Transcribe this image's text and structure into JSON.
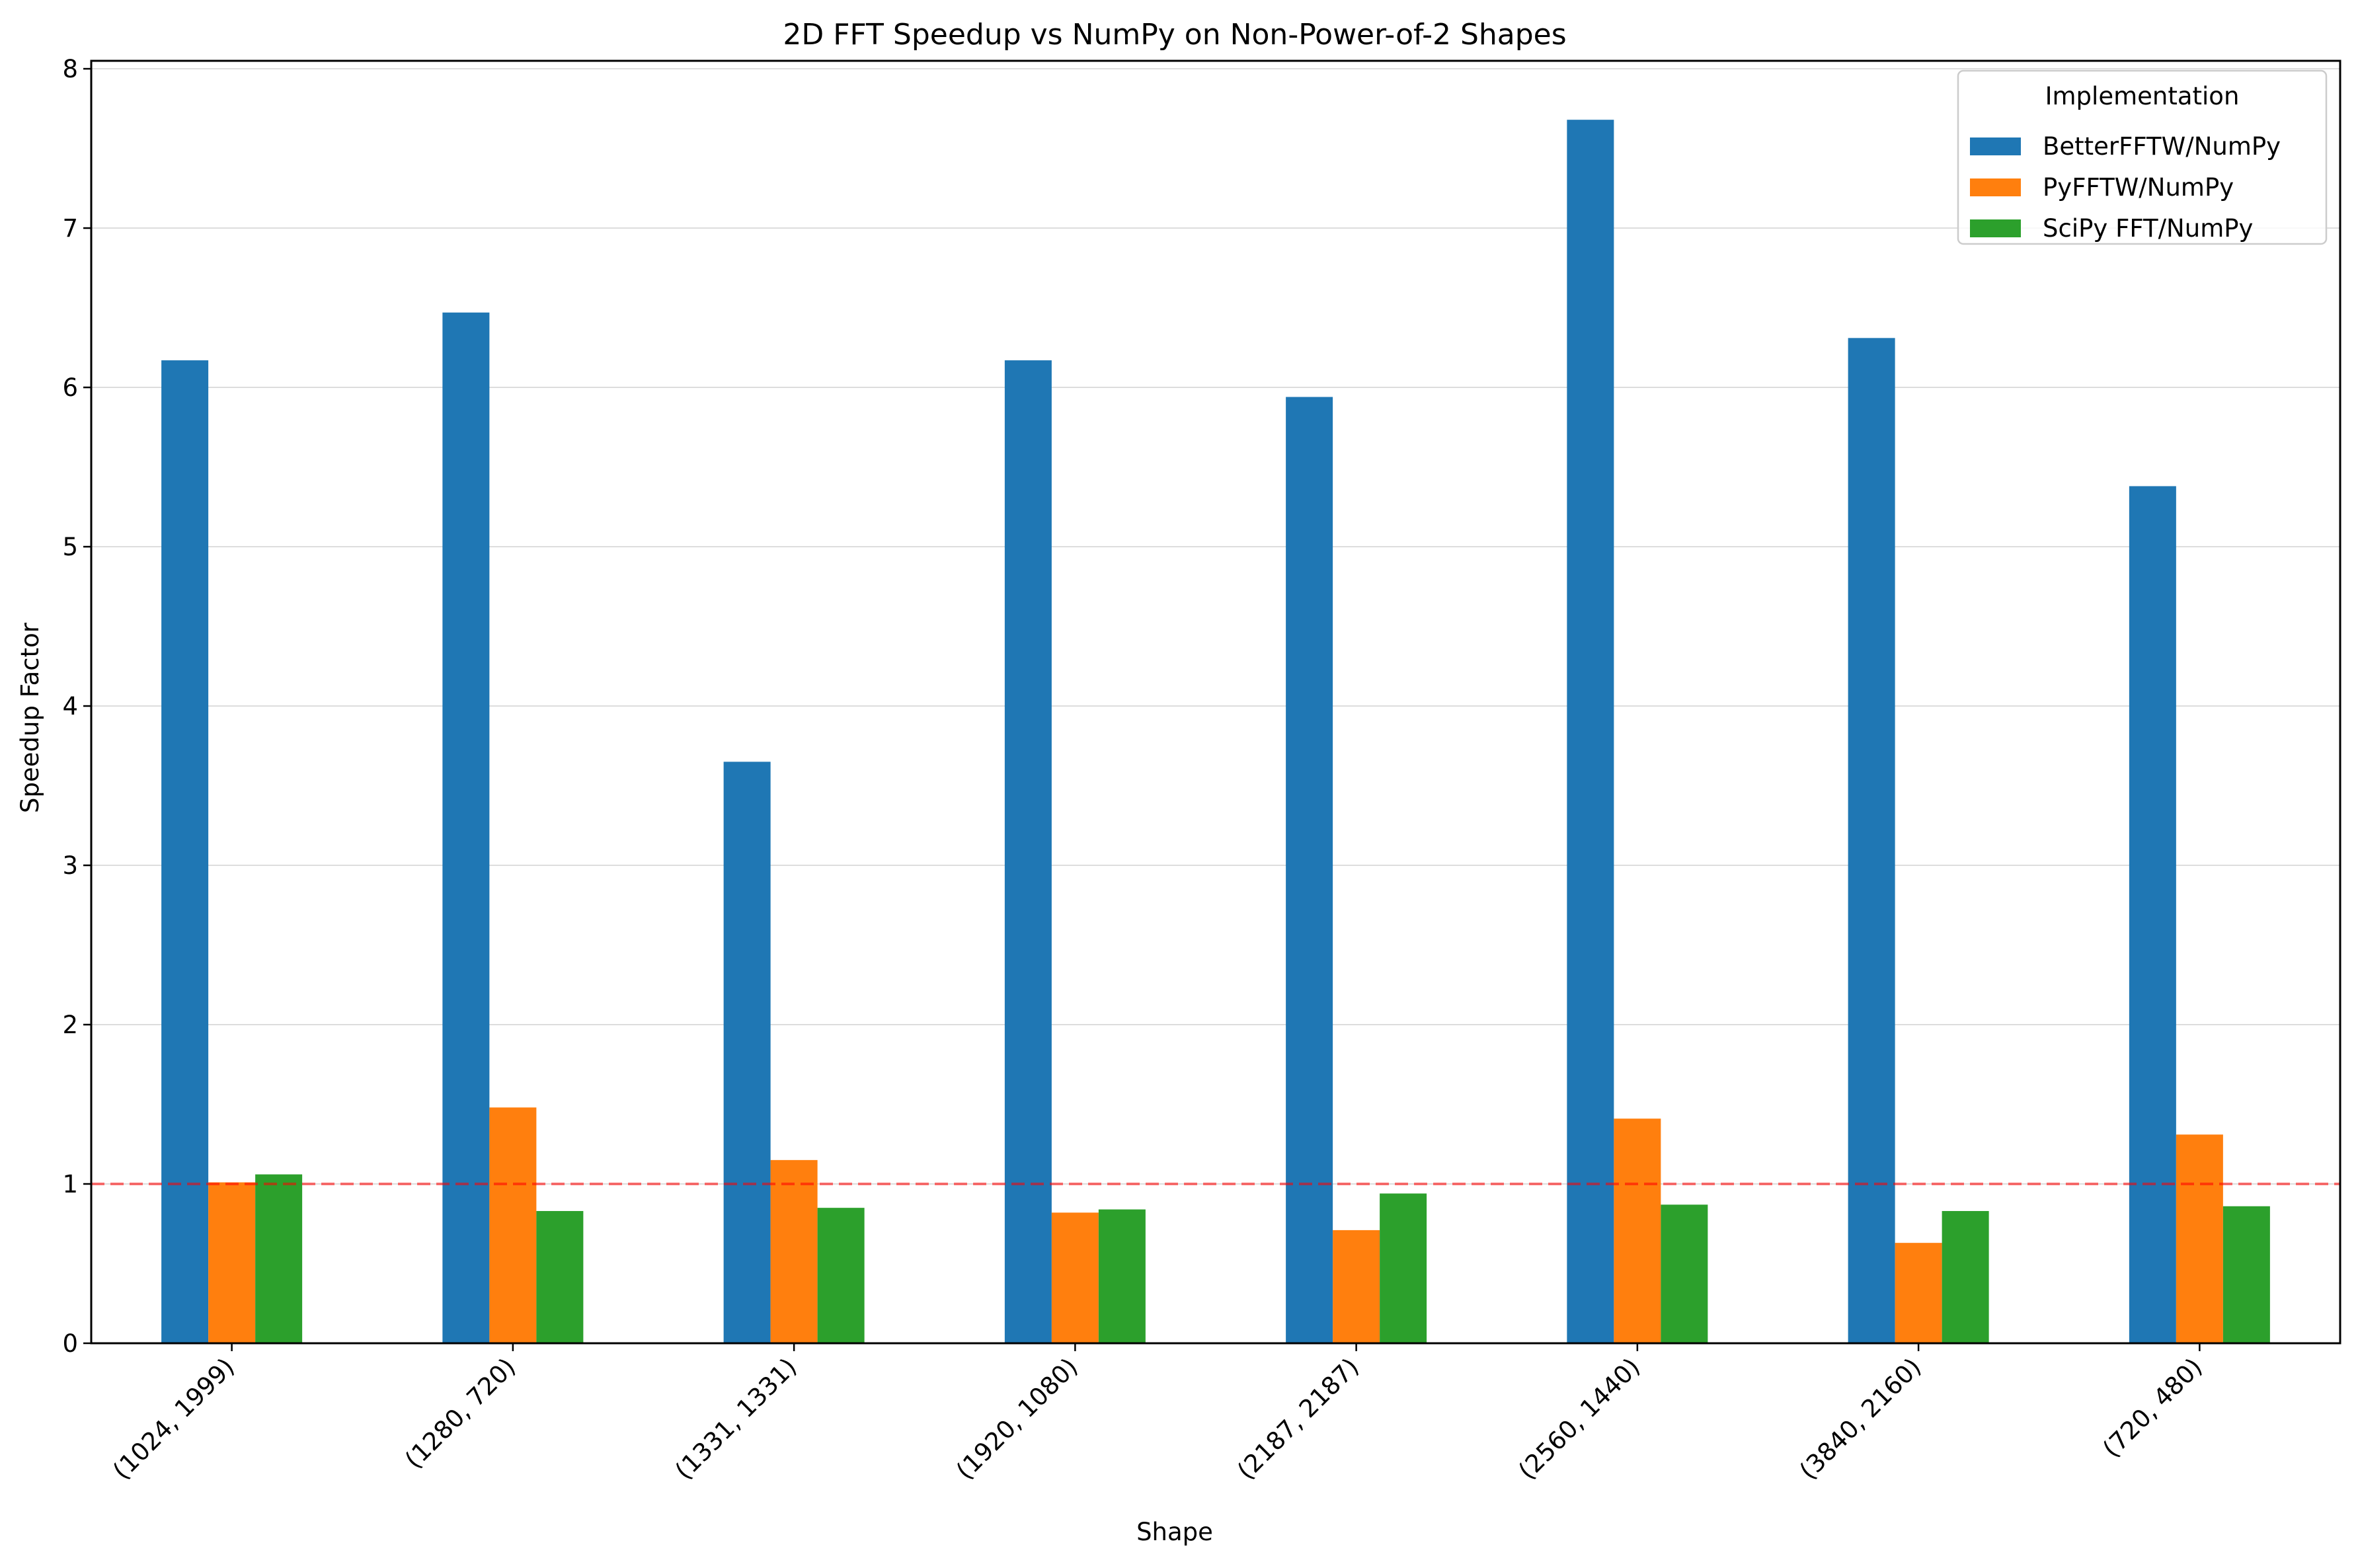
{
  "chart_data": {
    "type": "bar",
    "title": "2D FFT Speedup vs NumPy on Non-Power-of-2 Shapes",
    "xlabel": "Shape",
    "ylabel": "Speedup Factor",
    "categories": [
      "(1024, 1999)",
      "(1280, 720)",
      "(1331, 1331)",
      "(1920, 1080)",
      "(2187, 2187)",
      "(2560, 1440)",
      "(3840, 2160)",
      "(720, 480)"
    ],
    "series": [
      {
        "name": "BetterFFTW/NumPy",
        "color": "#1f77b4",
        "values": [
          6.17,
          6.47,
          3.65,
          6.17,
          5.94,
          7.68,
          6.31,
          5.38
        ]
      },
      {
        "name": "PyFFTW/NumPy",
        "color": "#ff7f0e",
        "values": [
          1.01,
          1.48,
          1.15,
          0.82,
          0.71,
          1.41,
          0.63,
          1.31
        ]
      },
      {
        "name": "SciPy FFT/NumPy",
        "color": "#2ca02c",
        "values": [
          1.06,
          0.83,
          0.85,
          0.84,
          0.94,
          0.87,
          0.83,
          0.86
        ]
      }
    ],
    "yticks": [
      "0",
      "1",
      "2",
      "3",
      "4",
      "5",
      "6",
      "7",
      "8"
    ],
    "ylim": [
      0,
      8.05
    ],
    "reference_line": {
      "y": 1.0,
      "color": "#ff0000",
      "style": "dashed"
    },
    "legend": {
      "title": "Implementation",
      "placement": "upper right"
    },
    "grid": "y"
  }
}
